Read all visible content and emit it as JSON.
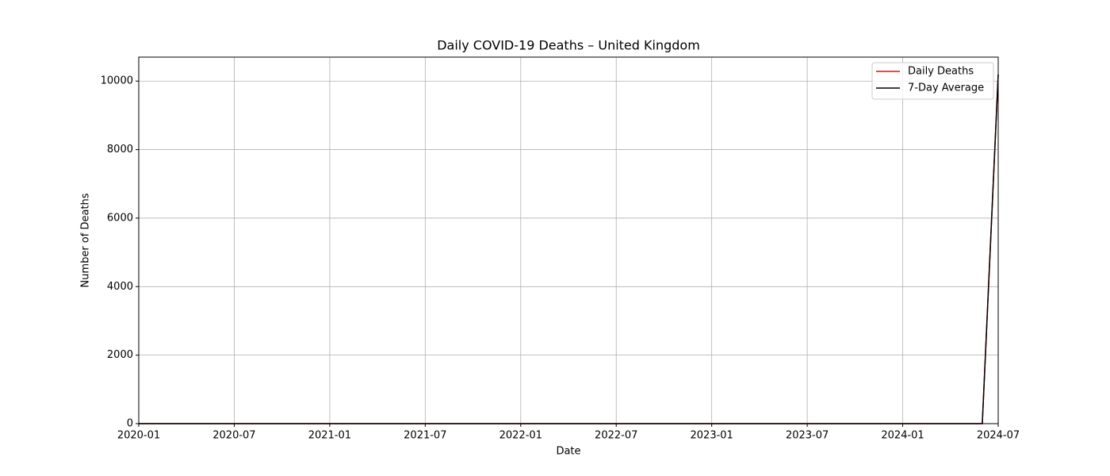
{
  "chart_data": {
    "type": "line",
    "title": "Daily COVID-19 Deaths – United Kingdom",
    "x_label": "Date",
    "y_label": "Number of Deaths",
    "x": [
      "2020-01",
      "2024-06",
      "2024-07"
    ],
    "series": [
      {
        "name": "Daily Deaths",
        "color": "#ff0000",
        "values": [
          0,
          0,
          10190
        ]
      },
      {
        "name": "7-Day Average",
        "color": "#000000",
        "values": [
          0,
          0,
          10190
        ]
      }
    ],
    "xlim": [
      "2020-01",
      "2024-07"
    ],
    "xticks": [
      "2020-01",
      "2020-07",
      "2021-01",
      "2021-07",
      "2022-01",
      "2022-07",
      "2023-01",
      "2023-07",
      "2024-01",
      "2024-07"
    ],
    "ylim": [
      0,
      10700
    ],
    "yticks": [
      0,
      2000,
      4000,
      6000,
      8000,
      10000
    ],
    "grid": true,
    "legend": "upper right"
  }
}
